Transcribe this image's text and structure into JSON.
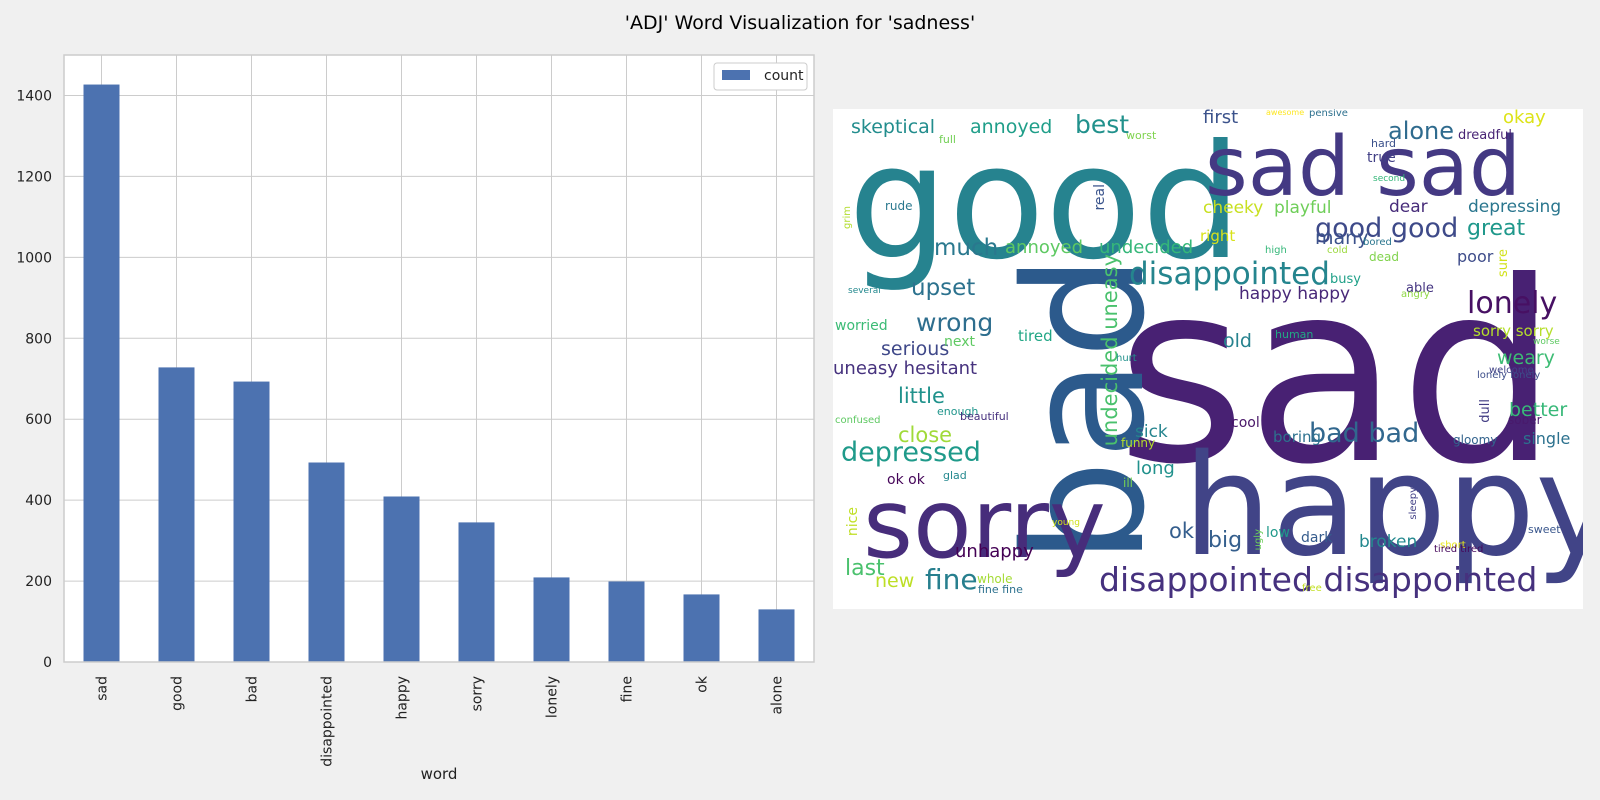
{
  "title": "'ADJ' Word Visualization for 'sadness'",
  "chart_data": [
    {
      "type": "bar",
      "xlabel": "word",
      "ylabel": "",
      "categories": [
        "sad",
        "good",
        "bad",
        "disappointed",
        "happy",
        "sorry",
        "lonely",
        "fine",
        "ok",
        "alone"
      ],
      "series": [
        {
          "name": "count",
          "values": [
            1427,
            728,
            693,
            493,
            409,
            345,
            209,
            199,
            167,
            130
          ]
        }
      ],
      "ylim": [
        0,
        1500
      ],
      "yticks": [
        0,
        200,
        400,
        600,
        800,
        1000,
        1200,
        1400
      ],
      "grid": true,
      "legend": "top-right",
      "bar_color": "#4c72b0"
    },
    {
      "type": "wordcloud",
      "words": [
        {
          "text": "sad",
          "color": "#482173"
        },
        {
          "text": "good",
          "color": "#26838f"
        },
        {
          "text": "bad",
          "color": "#2c5a8c"
        },
        {
          "text": "happy",
          "color": "#414487"
        },
        {
          "text": "sorry",
          "color": "#472d7b"
        },
        {
          "text": "sad sad",
          "color": "#443983"
        },
        {
          "text": "disappointed disappointed",
          "color": "#46317e"
        },
        {
          "text": "disappointed",
          "color": "#25858e"
        },
        {
          "text": "lonely",
          "color": "#471063"
        },
        {
          "text": "good good",
          "color": "#3e4a89"
        },
        {
          "text": "bad bad",
          "color": "#31678e"
        },
        {
          "text": "depressed",
          "color": "#1f9a8a"
        },
        {
          "text": "wrong",
          "color": "#2e6e8e"
        },
        {
          "text": "fine",
          "color": "#277f8e"
        },
        {
          "text": "undecided uneasy",
          "color": "#4ac16d"
        },
        {
          "text": "much",
          "color": "#2a788e"
        },
        {
          "text": "upset",
          "color": "#2c728e"
        },
        {
          "text": "best",
          "color": "#21918c"
        },
        {
          "text": "alone",
          "color": "#2f6b8e"
        },
        {
          "text": "great",
          "color": "#1f988b"
        },
        {
          "text": "little",
          "color": "#20928c"
        },
        {
          "text": "close",
          "color": "#a0da39"
        },
        {
          "text": "skeptical",
          "color": "#228d8d"
        },
        {
          "text": "annoyed",
          "color": "#1f9e89"
        },
        {
          "text": "annoyed",
          "color": "#5ec962"
        },
        {
          "text": "undecided",
          "color": "#35b779"
        },
        {
          "text": "cheeky",
          "color": "#c8e020"
        },
        {
          "text": "playful",
          "color": "#6ece58"
        },
        {
          "text": "many",
          "color": "#3b528b"
        },
        {
          "text": "dear",
          "color": "#472c7a"
        },
        {
          "text": "depressing",
          "color": "#2a768e"
        },
        {
          "text": "happy happy",
          "color": "#482878"
        },
        {
          "text": "serious",
          "color": "#3f4889"
        },
        {
          "text": "uneasy hesitant",
          "color": "#46327e"
        },
        {
          "text": "weary",
          "color": "#3dbc74"
        },
        {
          "text": "better",
          "color": "#37b878"
        },
        {
          "text": "sorry sorry",
          "color": "#b5de2b"
        },
        {
          "text": "last",
          "color": "#4ac16d"
        },
        {
          "text": "new",
          "color": "#bddf26"
        },
        {
          "text": "unhappy",
          "color": "#440154"
        },
        {
          "text": "big",
          "color": "#355f8d"
        },
        {
          "text": "broken",
          "color": "#23888e"
        },
        {
          "text": "ok",
          "color": "#355e8d"
        },
        {
          "text": "long",
          "color": "#21918c"
        },
        {
          "text": "sick",
          "color": "#25848e"
        },
        {
          "text": "first",
          "color": "#3b528b"
        },
        {
          "text": "okay",
          "color": "#dde318"
        },
        {
          "text": "old",
          "color": "#26828e"
        },
        {
          "text": "tired",
          "color": "#21a685"
        },
        {
          "text": "right",
          "color": "#d8e219"
        },
        {
          "text": "poor",
          "color": "#3e4c8a"
        },
        {
          "text": "single",
          "color": "#2c718e"
        },
        {
          "text": "worried",
          "color": "#3bbb75"
        },
        {
          "text": "next",
          "color": "#5ec962"
        },
        {
          "text": "real",
          "color": "#3a548c"
        },
        {
          "text": "true",
          "color": "#424086"
        },
        {
          "text": "dreadful",
          "color": "#482475"
        },
        {
          "text": "boring",
          "color": "#2d718e"
        },
        {
          "text": "cool",
          "color": "#481668"
        },
        {
          "text": "nice",
          "color": "#c0df25"
        },
        {
          "text": "dull",
          "color": "#433d84"
        },
        {
          "text": "sure",
          "color": "#d2e21b"
        },
        {
          "text": "ok ok",
          "color": "#450559"
        },
        {
          "text": "dark",
          "color": "#365c8d"
        },
        {
          "text": "low",
          "color": "#1f998a"
        },
        {
          "text": "busy",
          "color": "#1fa088"
        },
        {
          "text": "able",
          "color": "#453581"
        },
        {
          "text": "gloomy",
          "color": "#33638d"
        },
        {
          "text": "human",
          "color": "#22a884"
        },
        {
          "text": "whole",
          "color": "#a5db36"
        },
        {
          "text": "hard",
          "color": "#3b518b"
        },
        {
          "text": "worst",
          "color": "#7fd34e"
        },
        {
          "text": "full",
          "color": "#73d056"
        },
        {
          "text": "pensive",
          "color": "#2d708e"
        },
        {
          "text": "awesome",
          "color": "#fde725"
        },
        {
          "text": "second",
          "color": "#35b779"
        },
        {
          "text": "grim",
          "color": "#b2dd2d"
        },
        {
          "text": "rude",
          "color": "#2a788e"
        },
        {
          "text": "several",
          "color": "#23898e"
        },
        {
          "text": "angry",
          "color": "#8fd744"
        },
        {
          "text": "enough",
          "color": "#1f958b"
        },
        {
          "text": "confused",
          "color": "#5ec962"
        },
        {
          "text": "beautiful",
          "color": "#46307e"
        },
        {
          "text": "funny",
          "color": "#b5de2b"
        },
        {
          "text": "glad",
          "color": "#23888e"
        },
        {
          "text": "young",
          "color": "#d0e11c"
        },
        {
          "text": "ill",
          "color": "#75d054"
        },
        {
          "text": "ugly",
          "color": "#6ccd5a"
        },
        {
          "text": "fine fine",
          "color": "#2c718e"
        },
        {
          "text": "free",
          "color": "#c2df23"
        },
        {
          "text": "short",
          "color": "#e5e419"
        },
        {
          "text": "tired tired",
          "color": "#46085c"
        },
        {
          "text": "sweet",
          "color": "#39568c"
        },
        {
          "text": "sleepy",
          "color": "#424086"
        },
        {
          "text": "sober",
          "color": "#481a6c"
        },
        {
          "text": "lonely lonely",
          "color": "#3d4e8a"
        },
        {
          "text": "welcome",
          "color": "#414487"
        },
        {
          "text": "worse",
          "color": "#5ec962"
        },
        {
          "text": "hurt",
          "color": "#21918c"
        },
        {
          "text": "high",
          "color": "#35b779"
        },
        {
          "text": "cold",
          "color": "#9bd93c"
        },
        {
          "text": "bored",
          "color": "#2a768e"
        },
        {
          "text": "dead",
          "color": "#81d34d"
        }
      ]
    }
  ]
}
